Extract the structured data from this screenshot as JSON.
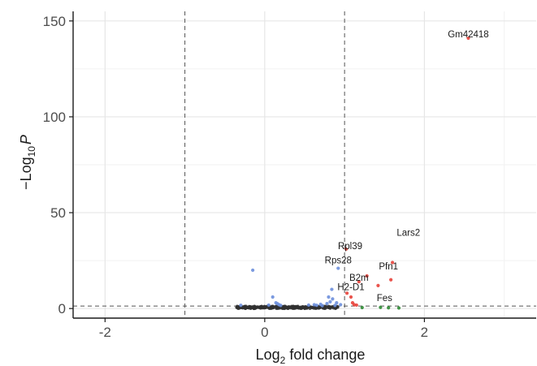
{
  "chart_data": {
    "type": "scatter",
    "title": "",
    "xlabel_main": "Log",
    "xlabel_sub": "2",
    "xlabel_rest": " fold change",
    "ylabel_pre": "−Log",
    "ylabel_sub": "10",
    "ylabel_var": "P",
    "xlim": [
      -2.4,
      3.4
    ],
    "ylim": [
      -5,
      155
    ],
    "x_ticks": [
      -2,
      0,
      2
    ],
    "x_tick_labels": [
      "-2",
      "0",
      "2"
    ],
    "y_ticks": [
      0,
      50,
      100,
      150
    ],
    "y_tick_labels": [
      "0",
      "50",
      "100",
      "150"
    ],
    "grid": true,
    "cutoffs": {
      "fc": [
        -1,
        1
      ],
      "p": 1.3
    },
    "colors": {
      "ns": "#303030",
      "fc_only": "#2e8b34",
      "p_only": "#6d8fdc",
      "both": "#e8413a",
      "grid_major": "#e6e6e6",
      "grid_minor": "#f2f2f2",
      "cutoff_line": "#555555"
    },
    "series": [
      {
        "group": "p_only",
        "points": [
          [
            -0.15,
            20
          ],
          [
            0.1,
            6
          ],
          [
            0.14,
            3
          ],
          [
            0.16,
            2.5
          ],
          [
            0.18,
            2
          ],
          [
            0.05,
            1.8
          ],
          [
            0.2,
            1.6
          ],
          [
            -0.3,
            1.7
          ],
          [
            0.55,
            1.8
          ],
          [
            0.62,
            2.0
          ],
          [
            0.7,
            2.2
          ],
          [
            0.78,
            2.6
          ],
          [
            0.82,
            3.5
          ],
          [
            0.85,
            5
          ],
          [
            0.9,
            3
          ],
          [
            0.95,
            2
          ],
          [
            0.88,
            1.6
          ],
          [
            0.72,
            1.5
          ],
          [
            0.65,
            1.7
          ],
          [
            0.92,
            21
          ],
          [
            0.84,
            10
          ],
          [
            0.8,
            6
          ]
        ]
      },
      {
        "group": "both",
        "points": [
          [
            2.55,
            141
          ],
          [
            1.02,
            31
          ],
          [
            1.03,
            8
          ],
          [
            1.08,
            6
          ],
          [
            1.1,
            3
          ],
          [
            1.12,
            2
          ],
          [
            1.15,
            1.8
          ],
          [
            1.18,
            14
          ],
          [
            1.28,
            17
          ],
          [
            1.42,
            12
          ],
          [
            1.58,
            15
          ],
          [
            1.6,
            24
          ]
        ]
      },
      {
        "group": "fc_only",
        "points": [
          [
            1.22,
            0.5
          ],
          [
            1.45,
            0.6
          ],
          [
            1.55,
            0.4
          ],
          [
            1.68,
            0.3
          ]
        ]
      }
    ],
    "ns_band": {
      "x_from": -0.35,
      "x_to": 0.95,
      "y_max": 1.2
    },
    "annotations": [
      {
        "text": "Gm42418",
        "x": 2.55,
        "y": 141,
        "dx": 0.0,
        "dy": 0.5
      },
      {
        "text": "Lars2",
        "x": 1.75,
        "y": 38,
        "dx": 0.05,
        "dy": 0.0
      },
      {
        "text": "Rpl39",
        "x": 1.02,
        "y": 31,
        "dx": 0.05,
        "dy": 0.0
      },
      {
        "text": "Rps28",
        "x": 0.92,
        "y": 21,
        "dx": 0.0,
        "dy": 2.5
      },
      {
        "text": "Pfn1",
        "x": 1.6,
        "y": 24,
        "dx": -0.05,
        "dy": -3.5
      },
      {
        "text": "B2m",
        "x": 1.18,
        "y": 14,
        "dx": 0.0,
        "dy": 0.5
      },
      {
        "text": "H2-D1",
        "x": 1.08,
        "y": 6,
        "dx": 0.0,
        "dy": 3.5
      },
      {
        "text": "Fes",
        "x": 1.55,
        "y": 0.4,
        "dx": -0.05,
        "dy": 3.5
      }
    ]
  }
}
